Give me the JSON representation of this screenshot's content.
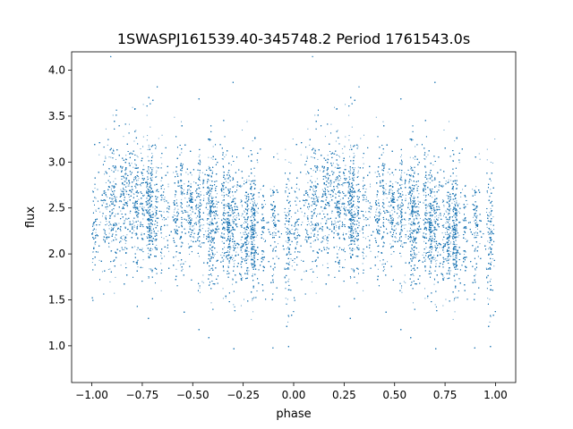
{
  "chart_data": {
    "type": "scatter",
    "title": "1SWASPJ161539.40-345748.2 Period 1761543.0s",
    "xlabel": "phase",
    "ylabel": "flux",
    "xlim": [
      -1.1,
      1.1
    ],
    "ylim": [
      0.6,
      4.2
    ],
    "x_ticks": [
      -1.0,
      -0.75,
      -0.5,
      -0.25,
      0.0,
      0.25,
      0.5,
      0.75,
      1.0
    ],
    "x_tick_labels": [
      "−1.00",
      "−0.75",
      "−0.50",
      "−0.25",
      "0.00",
      "0.25",
      "0.50",
      "0.75",
      "1.00"
    ],
    "y_ticks": [
      1.0,
      1.5,
      2.0,
      2.5,
      3.0,
      3.5,
      4.0
    ],
    "y_tick_labels": [
      "1.0",
      "1.5",
      "2.0",
      "2.5",
      "3.0",
      "3.5",
      "4.0"
    ],
    "grid": false,
    "marker_color": "#1f77b4",
    "series": [
      {
        "phase_range": [
          -1.0,
          1.0
        ],
        "profile": {
          "phase": [
            0.0,
            0.1,
            0.2,
            0.3,
            0.45,
            0.55,
            0.7,
            0.85,
            0.95,
            1.0
          ],
          "median_flux": [
            2.25,
            2.45,
            2.6,
            2.45,
            2.5,
            2.45,
            2.3,
            2.2,
            2.25,
            2.25
          ]
        },
        "approx_points": 16000
      }
    ]
  }
}
